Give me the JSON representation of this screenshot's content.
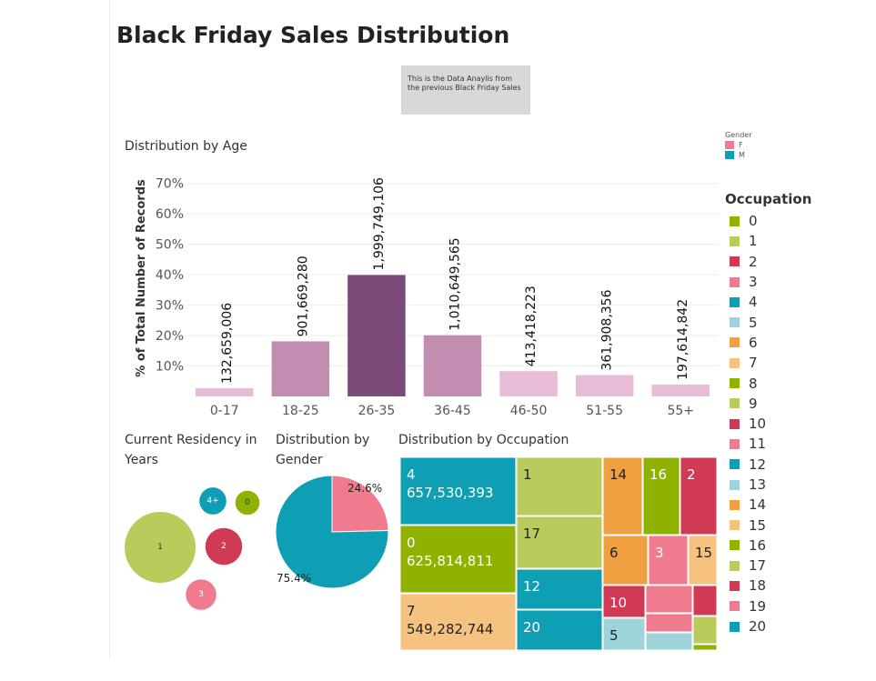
{
  "dashboard": {
    "title": "Black Friday Sales Distribution",
    "note": "This is the Data Anaylis from the previous Black Friday Sales"
  },
  "colors": {
    "age_darkest": "#7b4a78",
    "age_mid": "#c18db1",
    "age_light": "#e8bcd9",
    "gender_f": "#f07a8e",
    "gender_m": "#0f9fb4"
  },
  "chart_data": [
    {
      "type": "bar",
      "title": "Distribution by Age",
      "ylabel": "% of Total Number of Records",
      "categories": [
        "0-17",
        "18-25",
        "26-35",
        "36-45",
        "46-50",
        "51-55",
        "55+"
      ],
      "values": [
        2.7,
        18.1,
        39.9,
        20.1,
        8.3,
        7.0,
        3.9
      ],
      "data_labels": [
        "132,659,006",
        "901,669,280",
        "1,999,749,106",
        "1,010,649,565",
        "413,418,223",
        "361,908,356",
        "197,614,842"
      ],
      "bar_colors": [
        "#e8bcd9",
        "#c18db1",
        "#7b4a78",
        "#c18db1",
        "#e8bcd9",
        "#e8bcd9",
        "#e8bcd9"
      ],
      "yticks": [
        "10%",
        "20%",
        "30%",
        "40%",
        "50%",
        "60%",
        "70%"
      ],
      "ylim": [
        0,
        75
      ],
      "grid": true
    },
    {
      "type": "bubble",
      "title": "Current Residency in Years",
      "items": [
        {
          "label": "1",
          "color": "#b8cb5b",
          "size": 1.0
        },
        {
          "label": "2",
          "color": "#d13a55",
          "size": 0.52
        },
        {
          "label": "3",
          "color": "#f07a8e",
          "size": 0.43
        },
        {
          "label": "4+",
          "color": "#0f9fb4",
          "size": 0.38
        },
        {
          "label": "0",
          "color": "#8fb200",
          "size": 0.34
        }
      ]
    },
    {
      "type": "pie",
      "title": "Distribution by Gender",
      "legend_title": "Gender",
      "slices": [
        {
          "name": "F",
          "value": 24.6,
          "label": "24.6%",
          "color": "#f07a8e"
        },
        {
          "name": "M",
          "value": 75.4,
          "label": "75.4%",
          "color": "#0f9fb4"
        }
      ]
    },
    {
      "type": "treemap",
      "title": "Distribution by Occupation",
      "legend_title": "Occupation",
      "labeled_tiles": [
        {
          "occupation": "4",
          "value": "657,530,393",
          "color": "#0f9fb4"
        },
        {
          "occupation": "0",
          "value": "625,814,811",
          "color": "#8fb200"
        },
        {
          "occupation": "7",
          "value": "549,282,744",
          "color": "#f5c27f"
        },
        {
          "occupation": "1",
          "color": "#b8cb5b"
        },
        {
          "occupation": "17",
          "color": "#b8cb5b"
        },
        {
          "occupation": "12",
          "color": "#0f9fb4"
        },
        {
          "occupation": "20",
          "color": "#0f9fb4"
        },
        {
          "occupation": "14",
          "color": "#f0a040"
        },
        {
          "occupation": "16",
          "color": "#8fb200"
        },
        {
          "occupation": "2",
          "color": "#d13a55"
        },
        {
          "occupation": "6",
          "color": "#f0a040"
        },
        {
          "occupation": "3",
          "color": "#f07a8e"
        },
        {
          "occupation": "15",
          "color": "#f5c27f"
        },
        {
          "occupation": "10",
          "color": "#d13a55"
        },
        {
          "occupation": "5",
          "color": "#9dd4d9"
        }
      ],
      "legend": [
        {
          "label": "0",
          "color": "#8fb200"
        },
        {
          "label": "1",
          "color": "#b8cb5b"
        },
        {
          "label": "2",
          "color": "#d13a55"
        },
        {
          "label": "3",
          "color": "#f07a8e"
        },
        {
          "label": "4",
          "color": "#0f9fb4"
        },
        {
          "label": "5",
          "color": "#9dd4d9"
        },
        {
          "label": "6",
          "color": "#f0a040"
        },
        {
          "label": "7",
          "color": "#f5c27f"
        },
        {
          "label": "8",
          "color": "#8fb200"
        },
        {
          "label": "9",
          "color": "#b8cb5b"
        },
        {
          "label": "10",
          "color": "#d13a55"
        },
        {
          "label": "11",
          "color": "#f07a8e"
        },
        {
          "label": "12",
          "color": "#0f9fb4"
        },
        {
          "label": "13",
          "color": "#9dd4d9"
        },
        {
          "label": "14",
          "color": "#f0a040"
        },
        {
          "label": "15",
          "color": "#f5c27f"
        },
        {
          "label": "16",
          "color": "#8fb200"
        },
        {
          "label": "17",
          "color": "#b8cb5b"
        },
        {
          "label": "18",
          "color": "#d13a55"
        },
        {
          "label": "19",
          "color": "#f07a8e"
        },
        {
          "label": "20",
          "color": "#0f9fb4"
        }
      ]
    }
  ]
}
